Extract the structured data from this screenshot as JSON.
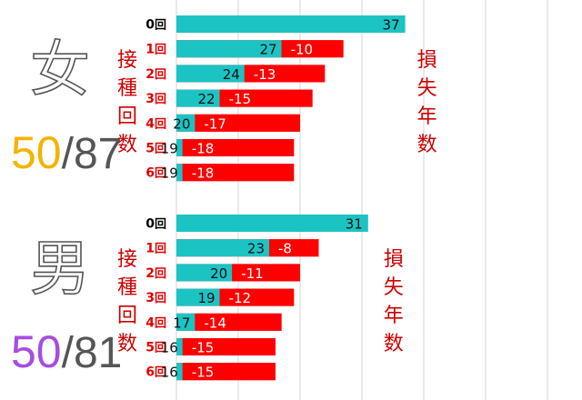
{
  "chart_data": [
    {
      "type": "bar",
      "gender": "女",
      "ratio_highlight": "50",
      "ratio_rest": "/87",
      "ratio_color": "#f4b400",
      "left_label": "接種回数",
      "right_label": "損失年数",
      "row_suffix": "回",
      "categories": [
        "0",
        "1",
        "2",
        "3",
        "4",
        "5",
        "6"
      ],
      "series": [
        {
          "values": [
            37,
            27,
            24,
            22,
            20,
            19,
            19
          ],
          "color": "#1cc3c3"
        },
        {
          "values": [
            null,
            -10,
            -13,
            -15,
            -17,
            -18,
            -18
          ],
          "color": "#ff0000"
        }
      ]
    },
    {
      "type": "bar",
      "gender": "男",
      "ratio_highlight": "50",
      "ratio_rest": "/81",
      "ratio_color": "#a64ee0",
      "left_label": "接種回数",
      "right_label": "損失年数",
      "row_suffix": "回",
      "categories": [
        "0",
        "1",
        "2",
        "3",
        "4",
        "5",
        "6"
      ],
      "series": [
        {
          "values": [
            31,
            23,
            20,
            19,
            17,
            16,
            16
          ],
          "color": "#1cc3c3"
        },
        {
          "values": [
            null,
            -8,
            -11,
            -12,
            -14,
            -15,
            -15
          ],
          "color": "#ff0000"
        }
      ]
    }
  ]
}
